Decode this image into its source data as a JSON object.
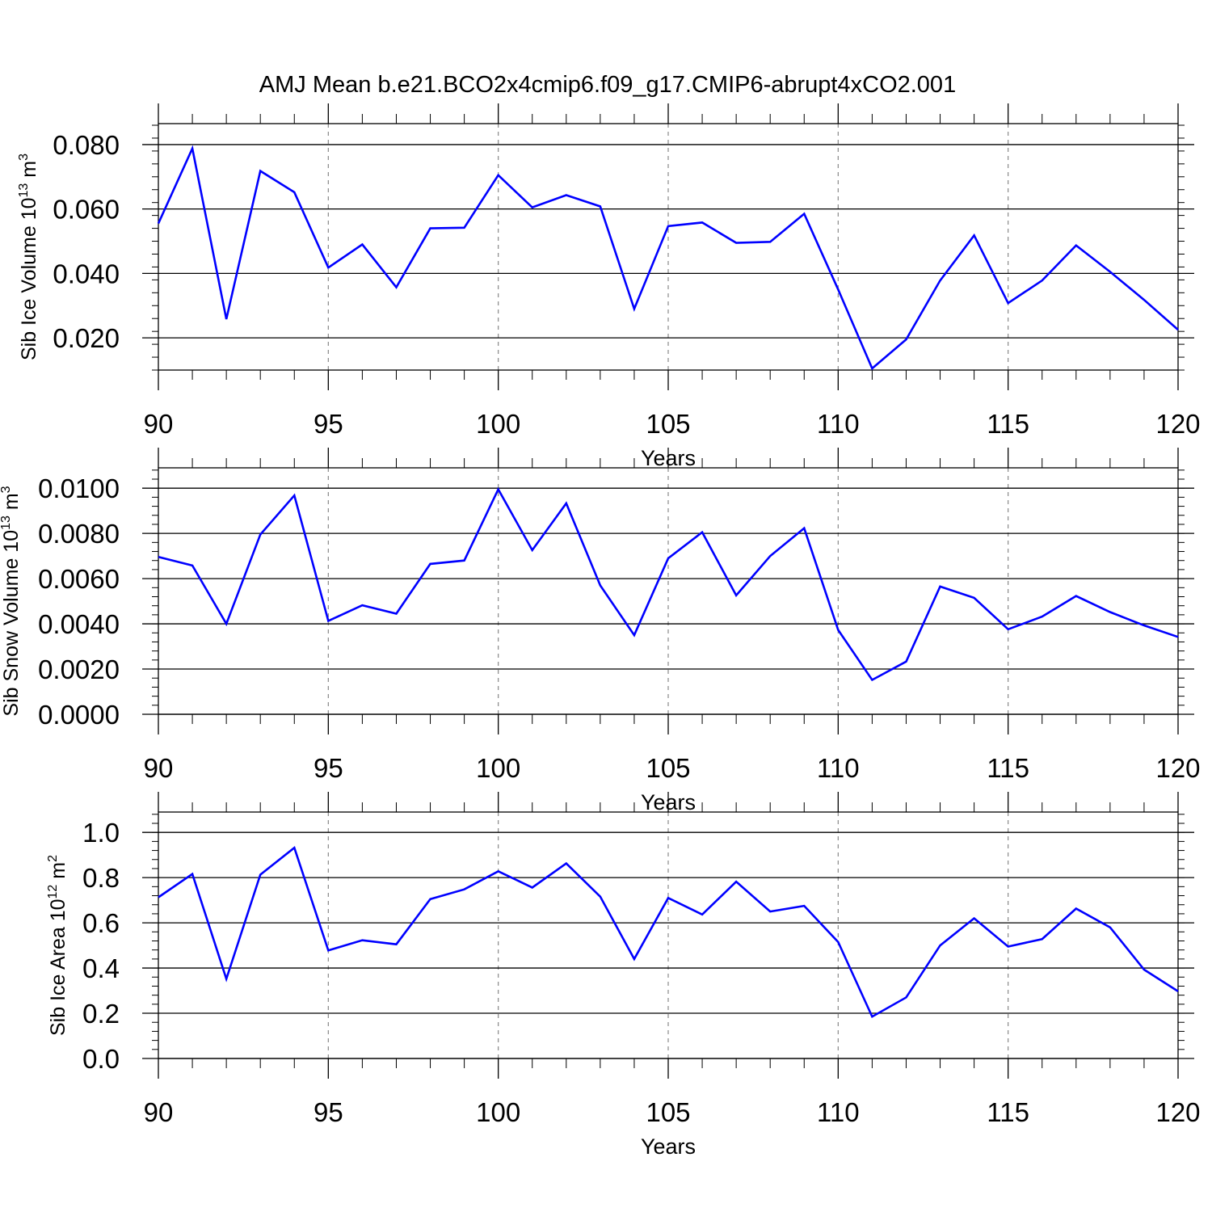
{
  "chart_data": [
    {
      "type": "line",
      "title": "AMJ Mean b.e21.BCO2x4cmip6.f09_g17.CMIP6-abrupt4xCO2.001",
      "ylabel": {
        "base": "Sib Ice Volume 10",
        "exp": "13",
        "unit": " m",
        "unit_exp": "3"
      },
      "xlabel": "Years",
      "xlim": [
        90,
        120
      ],
      "ylim": [
        0.01,
        0.0865
      ],
      "x_ticks": [
        "90",
        "95",
        "100",
        "105",
        "110",
        "115",
        "120"
      ],
      "y_ticks": [
        0.02,
        0.04,
        0.06,
        0.08
      ],
      "y_tick_labels": [
        "0.020",
        "0.040",
        "0.060",
        "0.080"
      ],
      "y_minor_step": 0.004,
      "x": [
        90,
        91,
        92,
        93,
        94,
        95,
        96,
        97,
        98,
        99,
        100,
        101,
        102,
        103,
        104,
        105,
        106,
        107,
        108,
        109,
        110,
        111,
        112,
        113,
        114,
        115,
        116,
        117,
        118,
        119,
        120
      ],
      "series": [
        {
          "name": "Sib Ice Volume",
          "color": "#0000ff",
          "values": [
            0.0555,
            0.0788,
            0.0258,
            0.0718,
            0.0652,
            0.0418,
            0.049,
            0.0357,
            0.054,
            0.0542,
            0.0705,
            0.0605,
            0.0643,
            0.0608,
            0.029,
            0.0547,
            0.0558,
            0.0495,
            0.0498,
            0.0585,
            0.035,
            0.0105,
            0.0195,
            0.0378,
            0.0518,
            0.0308,
            0.0378,
            0.0487,
            0.0405,
            0.0318,
            0.0225
          ]
        }
      ]
    },
    {
      "type": "line",
      "ylabel": {
        "base": "Sib Snow Volume 10",
        "exp": "13",
        "unit": " m",
        "unit_exp": "3"
      },
      "xlabel": "Years",
      "xlim": [
        90,
        120
      ],
      "ylim": [
        0.0,
        0.0109
      ],
      "x_ticks": [
        "90",
        "95",
        "100",
        "105",
        "110",
        "115",
        "120"
      ],
      "y_ticks": [
        0.0,
        0.002,
        0.004,
        0.006,
        0.008,
        0.01
      ],
      "y_tick_labels": [
        "0.0000",
        "0.0020",
        "0.0040",
        "0.0060",
        "0.0080",
        "0.0100"
      ],
      "y_minor_step": 0.0004,
      "x": [
        90,
        91,
        92,
        93,
        94,
        95,
        96,
        97,
        98,
        99,
        100,
        101,
        102,
        103,
        104,
        105,
        106,
        107,
        108,
        109,
        110,
        111,
        112,
        113,
        114,
        115,
        116,
        117,
        118,
        119,
        120
      ],
      "series": [
        {
          "name": "Sib Snow Volume",
          "color": "#0000ff",
          "values": [
            0.00696,
            0.00658,
            0.004,
            0.00795,
            0.00968,
            0.00413,
            0.00482,
            0.00445,
            0.00665,
            0.0068,
            0.00995,
            0.00726,
            0.00933,
            0.0057,
            0.0035,
            0.0069,
            0.00805,
            0.00526,
            0.007,
            0.00823,
            0.00373,
            0.00152,
            0.00233,
            0.00565,
            0.00515,
            0.00376,
            0.00432,
            0.00523,
            0.00452,
            0.00393,
            0.00342
          ]
        }
      ]
    },
    {
      "type": "line",
      "ylabel": {
        "base": "Sib Ice Area 10",
        "exp": "12",
        "unit": " m",
        "unit_exp": "2"
      },
      "xlabel": "Years",
      "xlim": [
        90,
        120
      ],
      "ylim": [
        0.0,
        1.09
      ],
      "x_ticks": [
        "90",
        "95",
        "100",
        "105",
        "110",
        "115",
        "120"
      ],
      "y_ticks": [
        0.0,
        0.2,
        0.4,
        0.6,
        0.8,
        1.0
      ],
      "y_tick_labels": [
        "0.0",
        "0.2",
        "0.4",
        "0.6",
        "0.8",
        "1.0"
      ],
      "y_minor_step": 0.04,
      "x": [
        90,
        91,
        92,
        93,
        94,
        95,
        96,
        97,
        98,
        99,
        100,
        101,
        102,
        103,
        104,
        105,
        106,
        107,
        108,
        109,
        110,
        111,
        112,
        113,
        114,
        115,
        116,
        117,
        118,
        119,
        120
      ],
      "series": [
        {
          "name": "Sib Ice Area",
          "color": "#0000ff",
          "values": [
            0.713,
            0.816,
            0.352,
            0.813,
            0.932,
            0.478,
            0.523,
            0.505,
            0.705,
            0.748,
            0.828,
            0.756,
            0.863,
            0.716,
            0.44,
            0.71,
            0.637,
            0.782,
            0.65,
            0.675,
            0.515,
            0.185,
            0.27,
            0.5,
            0.62,
            0.495,
            0.528,
            0.663,
            0.58,
            0.393,
            0.297
          ]
        }
      ]
    }
  ]
}
